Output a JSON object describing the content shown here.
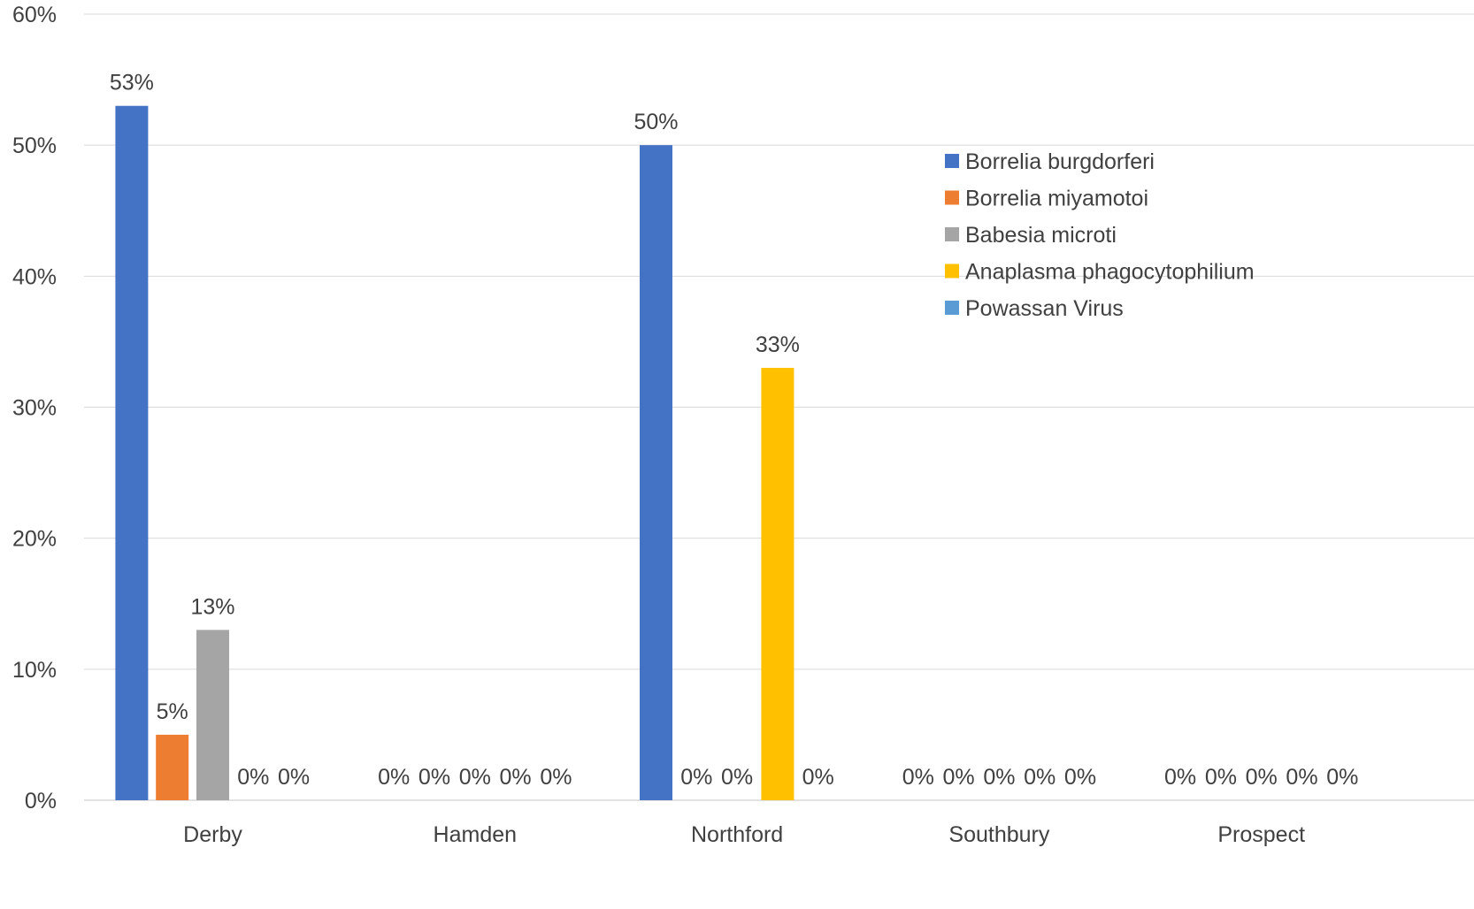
{
  "chart_data": {
    "type": "bar",
    "title": "",
    "xlabel": "",
    "ylabel": "",
    "categories": [
      "Derby",
      "Hamden",
      "Northford",
      "Southbury",
      "Prospect"
    ],
    "series": [
      {
        "name": "Borrelia burgdorferi",
        "color": "#4472C4",
        "values": [
          53,
          0,
          50,
          0,
          0
        ]
      },
      {
        "name": "Borrelia miyamotoi",
        "color": "#ED7D31",
        "values": [
          5,
          0,
          0,
          0,
          0
        ]
      },
      {
        "name": "Babesia microti",
        "color": "#A5A5A5",
        "values": [
          13,
          0,
          0,
          0,
          0
        ]
      },
      {
        "name": "Anaplasma phagocytophilium",
        "color": "#FFC000",
        "values": [
          0,
          0,
          33,
          0,
          0
        ]
      },
      {
        "name": "Powassan Virus",
        "color": "#5B9BD5",
        "values": [
          0,
          0,
          0,
          0,
          0
        ]
      }
    ],
    "ylim": [
      0,
      60
    ],
    "yticks": [
      0,
      10,
      20,
      30,
      40,
      50,
      60
    ],
    "value_suffix": "%",
    "grid": true,
    "legend_position": "top-right"
  }
}
